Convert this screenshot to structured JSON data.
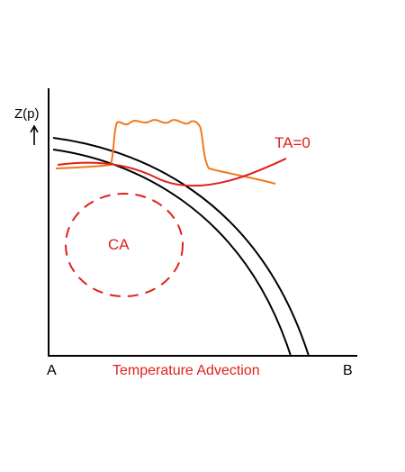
{
  "labels": {
    "y_axis": "Z(p)",
    "origin": "A",
    "x_end": "B",
    "x_axis": "Temperature Advection",
    "ta_zero": "TA=0",
    "ca": "CA"
  },
  "colors": {
    "axes": "#000000",
    "arcs": "#000000",
    "red": "#e0201c",
    "orange": "#f07a1e",
    "label_text": "#000000"
  },
  "icons": {
    "y_arrow": "up-arrow-icon"
  }
}
